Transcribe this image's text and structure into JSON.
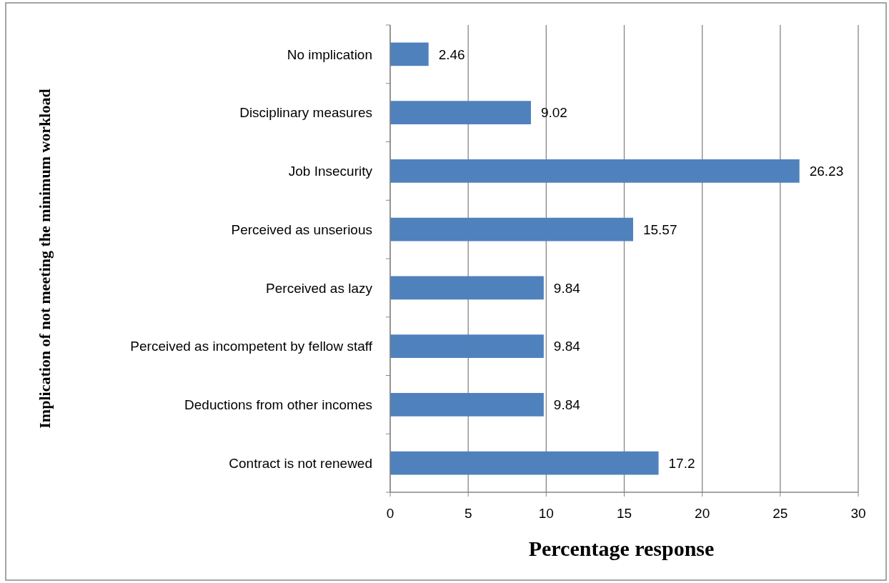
{
  "chart_data": {
    "type": "bar",
    "orientation": "horizontal",
    "xlabel": "Percentage response",
    "ylabel": "Implication of not meeting the minimum workload",
    "categories": [
      "No implication",
      "Disciplinary measures",
      "Job Insecurity",
      "Perceived as unserious",
      "Perceived as lazy",
      "Perceived as incompetent by fellow staff",
      "Deductions from other incomes",
      "Contract is not renewed"
    ],
    "values": [
      2.46,
      9.02,
      26.23,
      15.57,
      9.84,
      9.84,
      9.84,
      17.2
    ],
    "color": "#4f81bd",
    "xlim": [
      0,
      30
    ],
    "xticks": [
      0,
      5,
      10,
      15,
      20,
      25,
      30
    ],
    "grid": "x",
    "data_labels": true
  }
}
